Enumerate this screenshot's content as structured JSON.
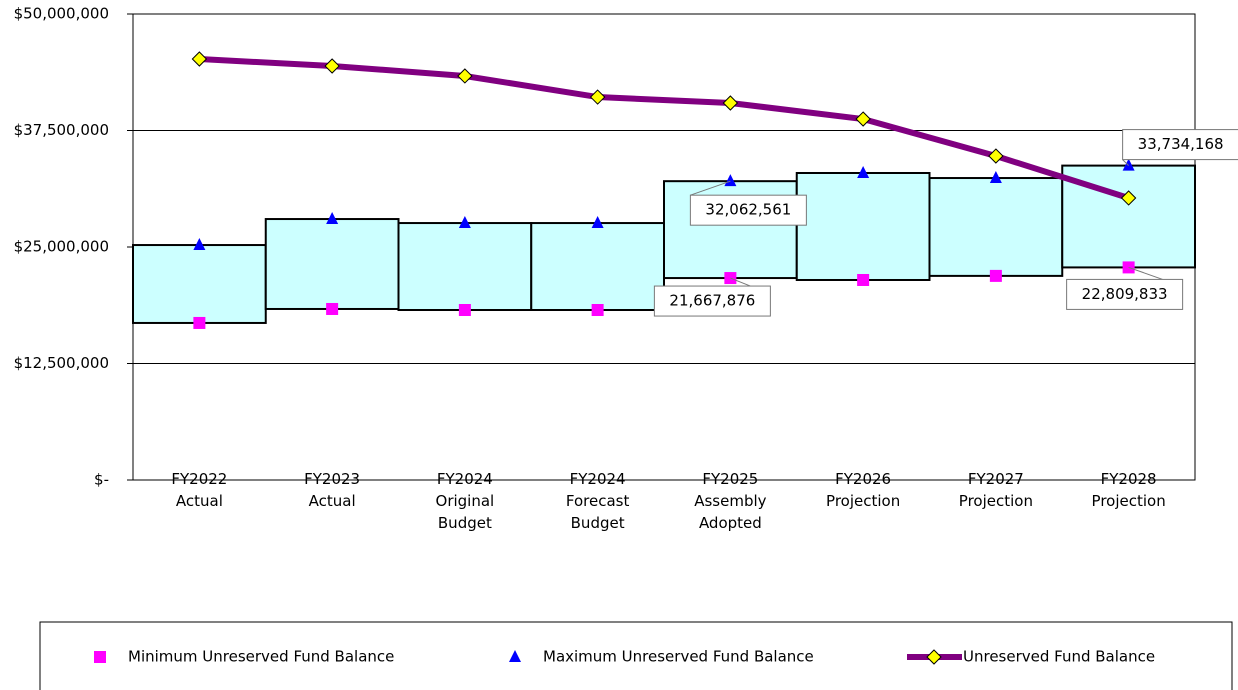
{
  "chart_data": {
    "type": "range-line",
    "categories": [
      "FY2022\nActual",
      "FY2023\nActual",
      "FY2024\nOriginal\nBudget",
      "FY2024\nForecast\nBudget",
      "FY2025\nAssembly\nAdopted",
      "FY2026\nProjection",
      "FY2027\nProjection",
      "FY2028\nProjection"
    ],
    "series": [
      {
        "name": "Minimum Unreserved Fund Balance",
        "color": "#ff00ff",
        "marker": "square",
        "values": [
          16850000,
          18350000,
          18240000,
          18240000,
          21667876,
          21460000,
          21900000,
          22809833
        ],
        "value_labels": [
          null,
          null,
          null,
          null,
          "21,667,876",
          null,
          null,
          "22,809,833"
        ]
      },
      {
        "name": "Maximum Unreserved Fund Balance",
        "color": "#0000ff",
        "marker": "triangle",
        "values": [
          25210000,
          28000000,
          27570000,
          27570000,
          32062561,
          32940000,
          32400000,
          33734168
        ],
        "value_labels": [
          null,
          null,
          null,
          null,
          "32,062,561",
          null,
          null,
          "33,734,168"
        ]
      },
      {
        "name": "Unreserved Fund Balance",
        "color": "#800080",
        "marker_color": "#ffff00",
        "marker": "diamond",
        "values": [
          45170000,
          44420000,
          43350000,
          41090000,
          40450000,
          38730000,
          34760000,
          30260000
        ]
      }
    ],
    "box_color": "#ccffff",
    "ylim": [
      0,
      50000000
    ],
    "yticks": [
      {
        "value": 0,
        "label": "$-"
      },
      {
        "value": 12500000,
        "label": "$12,500,000"
      },
      {
        "value": 25000000,
        "label": "$25,000,000"
      },
      {
        "value": 37500000,
        "label": "$37,500,000"
      },
      {
        "value": 50000000,
        "label": "$50,000,000"
      }
    ],
    "grid": true,
    "legend": "bottom"
  }
}
